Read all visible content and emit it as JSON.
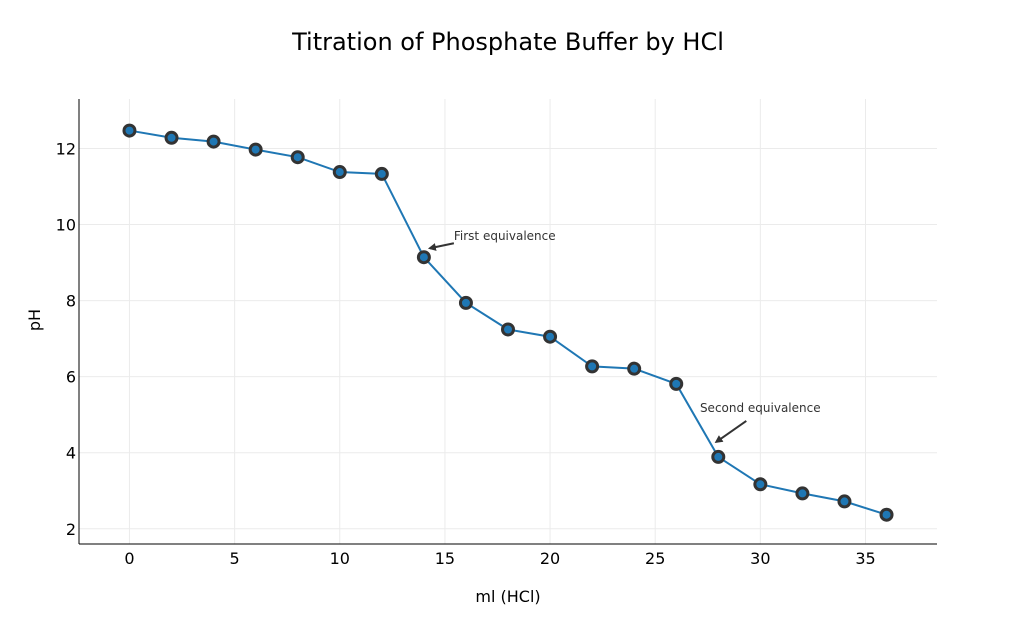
{
  "chart_data": {
    "type": "line",
    "title": "Titration of Phosphate Buffer by HCl",
    "xlabel": "ml (HCl)",
    "ylabel": "pH",
    "xlim": [
      -2.4,
      38.4
    ],
    "ylim": [
      1.6,
      13.3
    ],
    "xticks": [
      0,
      5,
      10,
      15,
      20,
      25,
      30,
      35
    ],
    "yticks": [
      2,
      4,
      6,
      8,
      10,
      12
    ],
    "grid": true,
    "legend": "none",
    "series": [
      {
        "x": [
          0,
          2,
          4,
          6,
          8,
          10,
          12,
          14,
          16,
          18,
          20,
          22,
          24,
          26,
          28,
          30,
          32,
          34,
          36
        ],
        "y": [
          12.47,
          12.28,
          12.18,
          11.97,
          11.77,
          11.38,
          11.33,
          9.14,
          7.94,
          7.24,
          7.05,
          6.27,
          6.21,
          5.81,
          3.89,
          3.17,
          2.93,
          2.72,
          2.37
        ]
      }
    ],
    "annotations": [
      {
        "text": "First equivalence",
        "x": 14,
        "y": 9.14
      },
      {
        "text": "Second equivalence",
        "x": 28,
        "y": 3.89
      }
    ],
    "colors": {
      "line": "#1f77b4",
      "marker_fill": "#1f77b4",
      "marker_edge": "#333333"
    }
  }
}
